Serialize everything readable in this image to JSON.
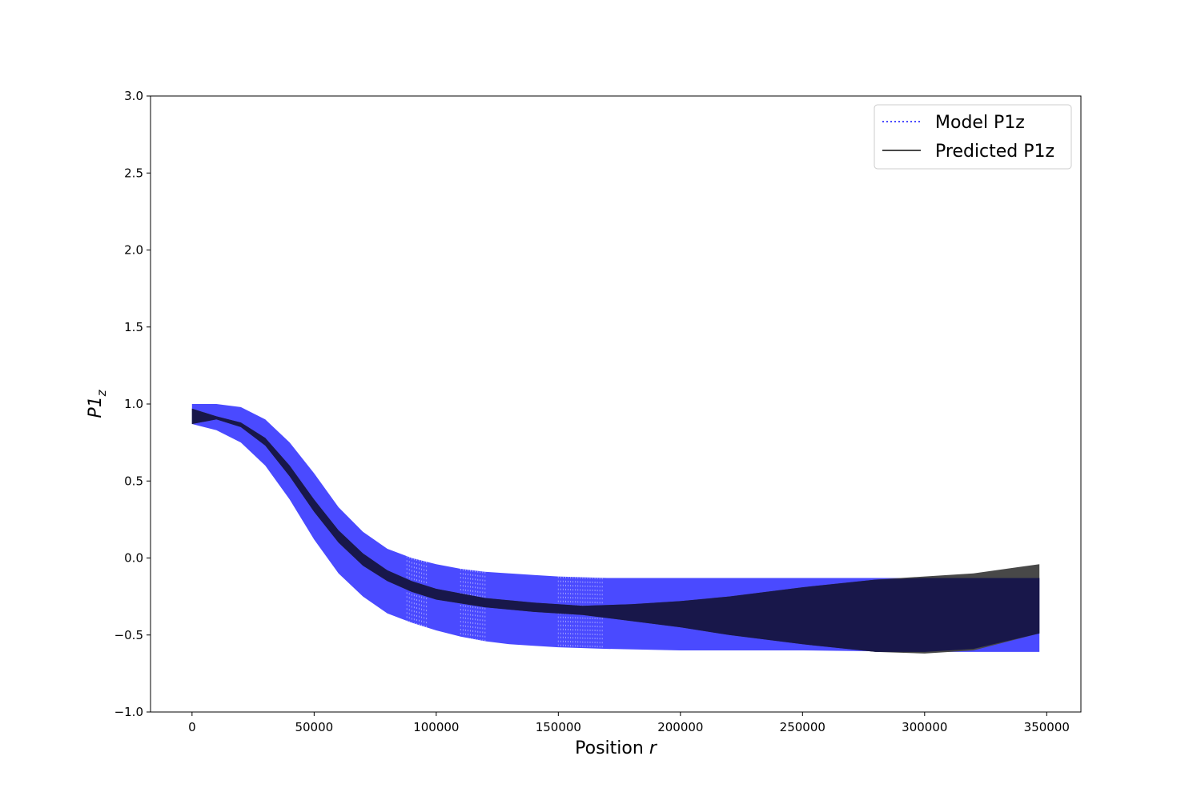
{
  "chart_data": {
    "type": "line",
    "title": "",
    "xlabel": "Position",
    "xlabel_var": "r",
    "ylabel": "P1",
    "ylabel_sub": "z",
    "xlim": [
      -17000,
      364000
    ],
    "ylim": [
      -1.0,
      3.0
    ],
    "xticks": [
      0,
      50000,
      100000,
      150000,
      200000,
      250000,
      300000,
      350000
    ],
    "xtick_labels": [
      "0",
      "50000",
      "100000",
      "150000",
      "200000",
      "250000",
      "300000",
      "350000"
    ],
    "yticks": [
      -1.0,
      -0.5,
      0.0,
      0.5,
      1.0,
      1.5,
      2.0,
      2.5,
      3.0
    ],
    "ytick_labels": [
      "−1.0",
      "−0.5",
      "0.0",
      "0.5",
      "1.0",
      "1.5",
      "2.0",
      "2.5",
      "3.0"
    ],
    "grid": false,
    "legend_position": "top-right",
    "series": [
      {
        "name": "Model P1z",
        "style": "dotted",
        "color": "#4a4aff",
        "x": [
          0,
          10000,
          20000,
          30000,
          40000,
          50000,
          60000,
          70000,
          80000,
          90000,
          100000,
          110000,
          120000,
          130000,
          140000,
          150000,
          170000,
          200000,
          250000,
          300000,
          347000
        ],
        "upper": [
          1.0,
          1.0,
          0.98,
          0.9,
          0.75,
          0.55,
          0.33,
          0.17,
          0.06,
          0.0,
          -0.04,
          -0.07,
          -0.09,
          -0.1,
          -0.11,
          -0.12,
          -0.13,
          -0.13,
          -0.13,
          -0.13,
          -0.13
        ],
        "lower": [
          0.87,
          0.83,
          0.75,
          0.6,
          0.38,
          0.12,
          -0.1,
          -0.25,
          -0.36,
          -0.42,
          -0.47,
          -0.51,
          -0.54,
          -0.56,
          -0.57,
          -0.58,
          -0.59,
          -0.6,
          -0.6,
          -0.61,
          -0.61
        ]
      },
      {
        "name": "Predicted P1z",
        "style": "solid",
        "color": "#484848",
        "x": [
          0,
          10000,
          20000,
          30000,
          40000,
          50000,
          60000,
          70000,
          80000,
          90000,
          100000,
          120000,
          140000,
          160000,
          180000,
          200000,
          220000,
          250000,
          280000,
          300000,
          320000,
          347000
        ],
        "upper": [
          0.97,
          0.92,
          0.88,
          0.78,
          0.6,
          0.38,
          0.18,
          0.03,
          -0.08,
          -0.15,
          -0.2,
          -0.26,
          -0.29,
          -0.31,
          -0.3,
          -0.28,
          -0.25,
          -0.19,
          -0.14,
          -0.12,
          -0.1,
          -0.04
        ],
        "lower": [
          0.87,
          0.9,
          0.85,
          0.73,
          0.53,
          0.3,
          0.1,
          -0.05,
          -0.15,
          -0.22,
          -0.27,
          -0.32,
          -0.35,
          -0.37,
          -0.41,
          -0.45,
          -0.5,
          -0.56,
          -0.61,
          -0.62,
          -0.6,
          -0.49
        ]
      },
      {
        "name": "",
        "style": "fill",
        "color": "#18174a",
        "x": [
          0,
          10000,
          20000,
          30000,
          40000,
          50000,
          60000,
          70000,
          80000,
          90000,
          100000,
          120000,
          140000,
          160000,
          180000,
          200000,
          220000,
          250000,
          280000,
          300000,
          320000,
          347000
        ],
        "upper": [
          0.97,
          0.92,
          0.88,
          0.78,
          0.6,
          0.38,
          0.18,
          0.03,
          -0.08,
          -0.15,
          -0.2,
          -0.26,
          -0.29,
          -0.31,
          -0.3,
          -0.28,
          -0.25,
          -0.19,
          -0.14,
          -0.13,
          -0.13,
          -0.13
        ],
        "lower": [
          0.87,
          0.9,
          0.85,
          0.73,
          0.53,
          0.3,
          0.1,
          -0.05,
          -0.15,
          -0.22,
          -0.27,
          -0.32,
          -0.35,
          -0.37,
          -0.41,
          -0.45,
          -0.5,
          -0.56,
          -0.61,
          -0.61,
          -0.59,
          -0.49
        ]
      }
    ]
  }
}
